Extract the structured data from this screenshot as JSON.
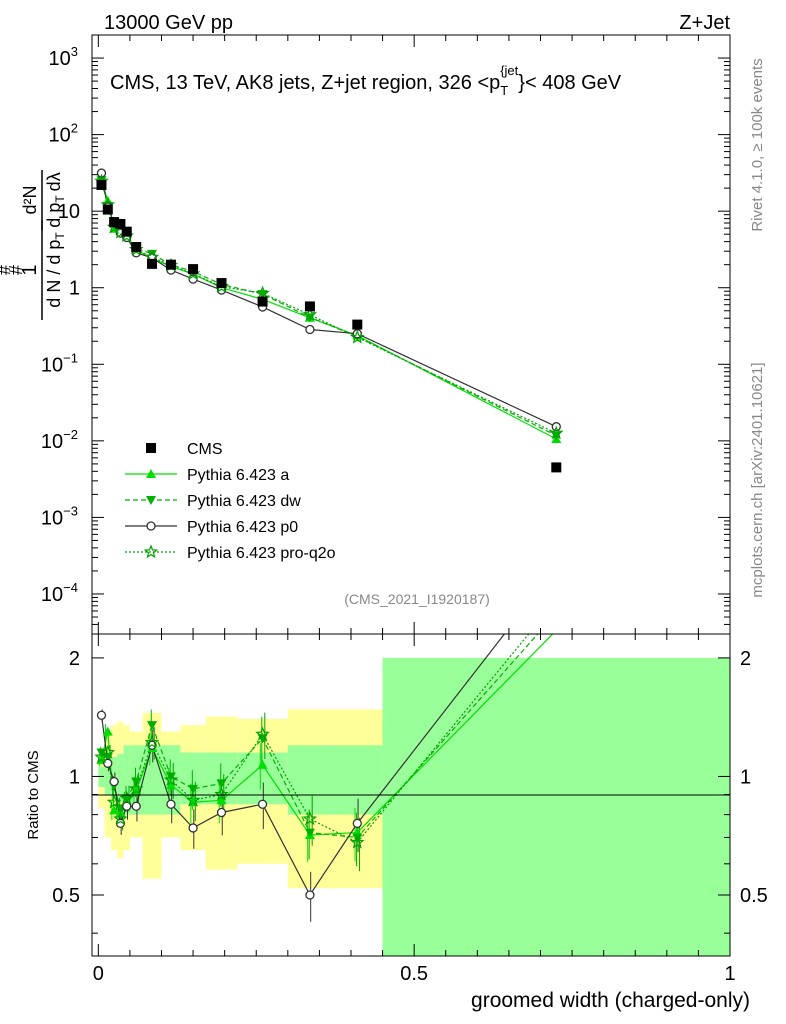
{
  "header": {
    "left": "13000 GeV pp",
    "right": "Z+Jet"
  },
  "side": {
    "rivet": "Rivet 4.1.0, ≥ 100k events",
    "mcplots": "mcplots.cern.ch [arXiv:2401.10621]"
  },
  "chart_data": {
    "type": "scatter",
    "title": "CMS, 13 TeV, AK8 jets, Z+jet region, 326 <p_T^{jet}< 408 GeV",
    "title_parts": {
      "main": "CMS, 13 TeV, AK8 jets, Z+jet region, 326 <p",
      "sub": "T",
      "sup": "{jet",
      "close": "}< 408 GeV"
    },
    "analysis_id": "(CMS_2021_I1920187)",
    "xlabel": "groomed width (charged-only)",
    "ylabel_top": "1/(dN/dp_T) d²N/(dp_T dλ)",
    "ylabel_top_parts": {
      "hash": "#",
      "one": "1",
      "dN": "d N / d p",
      "T": "T",
      "d2N": "d²N",
      "dp": "d p",
      "dl": "dλ"
    },
    "ylabel_bottom": "Ratio to CMS",
    "xlim": [
      -0.01,
      1.0
    ],
    "ylim_top": [
      3e-05,
      2000
    ],
    "ylim_ratio": [
      0.35,
      2.3
    ],
    "x_ticks": [
      0,
      0.5,
      1
    ],
    "x_tick_labels": [
      "0",
      "0.5",
      "1"
    ],
    "ratio_ticks": [
      0.5,
      1,
      2
    ],
    "ratio_tick_labels": [
      "0.5",
      "1",
      "2"
    ],
    "top_ticks": [
      0.0001,
      0.001,
      0.01,
      0.1,
      1,
      10,
      100,
      1000
    ],
    "top_tick_labels": [
      {
        "base": "10",
        "exp": "−4"
      },
      {
        "base": "10",
        "exp": "−3"
      },
      {
        "base": "10",
        "exp": "−2"
      },
      {
        "base": "10",
        "exp": "−1"
      },
      {
        "base": "1",
        "exp": ""
      },
      {
        "base": "10",
        "exp": ""
      },
      {
        "base": "10",
        "exp": "2"
      },
      {
        "base": "10",
        "exp": "3"
      }
    ],
    "bins": [
      0,
      0.01,
      0.02,
      0.03,
      0.04,
      0.05,
      0.07,
      0.1,
      0.13,
      0.17,
      0.22,
      0.3,
      0.37,
      0.45,
      1.0
    ],
    "data": {
      "name": "CMS",
      "x": [
        0.005,
        0.015,
        0.025,
        0.035,
        0.045,
        0.06,
        0.085,
        0.115,
        0.15,
        0.195,
        0.26,
        0.335,
        0.41,
        0.725
      ],
      "y": [
        22,
        10.5,
        7.2,
        6.8,
        5.4,
        3.4,
        2.05,
        2.0,
        1.75,
        1.15,
        0.66,
        0.57,
        0.33,
        0.0045
      ],
      "band_inner": [
        0.06,
        0.1,
        0.12,
        0.14,
        0.2,
        0.2,
        0.2,
        0.2,
        0.15,
        0.15,
        0.15,
        0.2,
        0.2,
        1.0
      ],
      "band_outer": [
        0.17,
        0.3,
        0.35,
        0.38,
        0.35,
        0.3,
        0.45,
        0.3,
        0.35,
        0.42,
        0.4,
        0.48,
        0.48,
        1.0
      ]
    },
    "series": [
      {
        "name": "Pythia 6.423 a",
        "color": "#00e000",
        "dash": "",
        "marker": "triangle-up",
        "ratio": [
          1.1,
          1.3,
          0.82,
          0.81,
          0.85,
          0.92,
          1.18,
          0.95,
          0.86,
          0.87,
          1.07,
          0.71,
          0.72,
          2.35
        ]
      },
      {
        "name": "Pythia 6.423 dw",
        "color": "#00b000",
        "dash": "5,3",
        "marker": "triangle-down",
        "ratio": [
          1.15,
          1.12,
          0.95,
          0.83,
          0.88,
          0.97,
          1.35,
          1.0,
          0.93,
          0.96,
          1.25,
          0.72,
          0.7,
          2.6
        ]
      },
      {
        "name": "Pythia 6.423 p0",
        "color": "#333333",
        "dash": "",
        "marker": "circle-open",
        "ratio": [
          1.43,
          1.08,
          0.97,
          0.76,
          0.84,
          0.84,
          1.2,
          0.85,
          0.74,
          0.81,
          0.85,
          0.5,
          0.76,
          3.4
        ]
      },
      {
        "name": "Pythia 6.423 pro-q2o",
        "color": "#00a000",
        "dash": "2,2",
        "marker": "star",
        "ratio": [
          1.12,
          1.15,
          0.86,
          0.78,
          0.88,
          0.93,
          1.22,
          0.98,
          0.87,
          0.9,
          1.28,
          0.78,
          0.68,
          2.8
        ]
      }
    ]
  }
}
